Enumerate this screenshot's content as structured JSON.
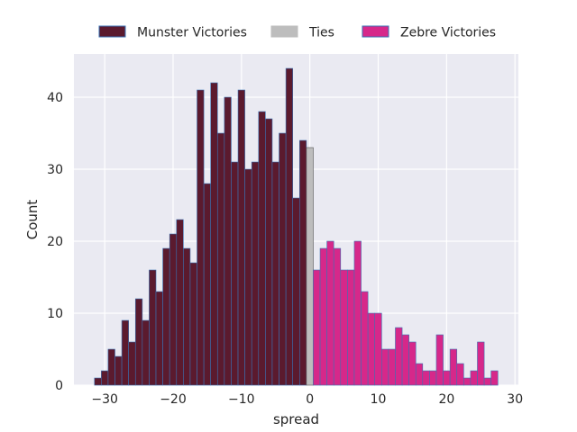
{
  "chart_data": {
    "type": "bar",
    "xlabel": "spread",
    "ylabel": "Count",
    "xlim": [
      -34.5,
      30.5
    ],
    "ylim": [
      0,
      46
    ],
    "x_ticks": [
      -30,
      -20,
      -10,
      0,
      10,
      20,
      30
    ],
    "x_tick_labels": [
      "−30",
      "−20",
      "−10",
      "0",
      "10",
      "20",
      "30"
    ],
    "y_ticks": [
      0,
      10,
      20,
      30,
      40
    ],
    "y_tick_labels": [
      "0",
      "10",
      "20",
      "30",
      "40"
    ],
    "grid": true,
    "legend_position": "top-center, outside plot",
    "bin_width": 1,
    "colors": {
      "background": "#eaeaf2",
      "grid": "#ffffff",
      "munster": "#5b1a2e",
      "ties": "#bdbdbd",
      "zebre": "#d6288a",
      "edge": "#3a72b4",
      "ties_edge": "#555555"
    },
    "series": [
      {
        "name": "Munster Victories",
        "color_key": "munster",
        "x": [
          -31,
          -30,
          -29,
          -28,
          -27,
          -26,
          -25,
          -24,
          -23,
          -22,
          -21,
          -20,
          -19,
          -18,
          -17,
          -16,
          -15,
          -14,
          -13,
          -12,
          -11,
          -10,
          -9,
          -8,
          -7,
          -6,
          -5,
          -4,
          -3,
          -2,
          -1
        ],
        "values": [
          1,
          2,
          5,
          4,
          9,
          6,
          12,
          9,
          16,
          13,
          19,
          21,
          23,
          19,
          17,
          41,
          28,
          42,
          35,
          40,
          31,
          41,
          30,
          31,
          38,
          37,
          31,
          35,
          44,
          26,
          34
        ]
      },
      {
        "name": "Ties",
        "color_key": "ties",
        "x": [
          0
        ],
        "values": [
          33
        ]
      },
      {
        "name": "Zebre Victories",
        "color_key": "zebre",
        "x": [
          1,
          2,
          3,
          4,
          5,
          6,
          7,
          8,
          9,
          10,
          11,
          12,
          13,
          14,
          15,
          16,
          17,
          18,
          19,
          20,
          21,
          22,
          23,
          24,
          25,
          26,
          27
        ],
        "values": [
          16,
          19,
          20,
          19,
          16,
          16,
          20,
          13,
          10,
          10,
          5,
          5,
          8,
          7,
          6,
          3,
          2,
          2,
          7,
          2,
          5,
          3,
          1,
          2,
          6,
          1,
          2
        ]
      }
    ]
  }
}
